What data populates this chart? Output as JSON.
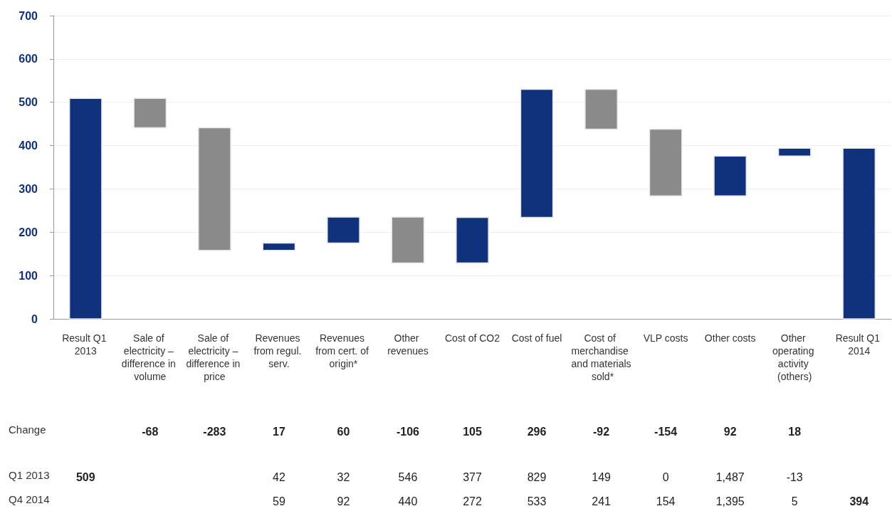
{
  "chart_data": {
    "type": "bar",
    "categories": [
      "Result Q1 2013",
      "Sale of electricity – difference in volume",
      "Sale of electricity – difference in price",
      "Revenues from regul. serv.",
      "Revenues from cert. of origin*",
      "Other revenues",
      "Cost of CO2",
      "Cost of fuel",
      "Cost of merchandise and materials sold*",
      "VLP costs",
      "Other costs",
      "Other operating activity (others)",
      "Result Q1 2014"
    ],
    "ylim": [
      0,
      700
    ],
    "yticks": [
      0,
      100,
      200,
      300,
      400,
      500,
      600,
      700
    ],
    "grid": "y",
    "series": [
      {
        "name": "Change",
        "values": [
          509,
          -68,
          -283,
          17,
          60,
          -106,
          105,
          296,
          -92,
          -154,
          92,
          18,
          394
        ],
        "base": [
          0,
          509,
          441,
          158,
          175,
          235,
          129,
          234,
          530,
          438,
          284,
          376,
          0
        ],
        "colors": [
          "#10327c",
          "#8a8a8a",
          "#8a8a8a",
          "#10327c",
          "#10327c",
          "#8a8a8a",
          "#10327c",
          "#10327c",
          "#8a8a8a",
          "#8a8a8a",
          "#10327c",
          "#10327c",
          "#10327c"
        ],
        "value_labels": [
          null,
          "-68",
          "-283",
          "17",
          "60",
          "-106",
          "105",
          "296",
          "-92",
          "-154",
          "92",
          "18",
          null
        ]
      },
      {
        "name": "Q1 2013",
        "values": [
          null,
          null,
          null,
          null,
          null,
          null,
          null,
          null,
          null,
          null,
          null,
          null,
          null
        ],
        "value_labels": [
          "509",
          null,
          null,
          "42",
          "32",
          "546",
          "377",
          "829",
          "149",
          "0",
          "1,487",
          "-13",
          null
        ]
      },
      {
        "name": "Q4 2014",
        "values": [
          null,
          null,
          null,
          null,
          null,
          null,
          null,
          null,
          null,
          null,
          null,
          null,
          null
        ],
        "value_labels": [
          null,
          null,
          null,
          "59",
          "92",
          "440",
          "272",
          "533",
          "241",
          "154",
          "1,395",
          "5",
          "394"
        ]
      }
    ]
  }
}
